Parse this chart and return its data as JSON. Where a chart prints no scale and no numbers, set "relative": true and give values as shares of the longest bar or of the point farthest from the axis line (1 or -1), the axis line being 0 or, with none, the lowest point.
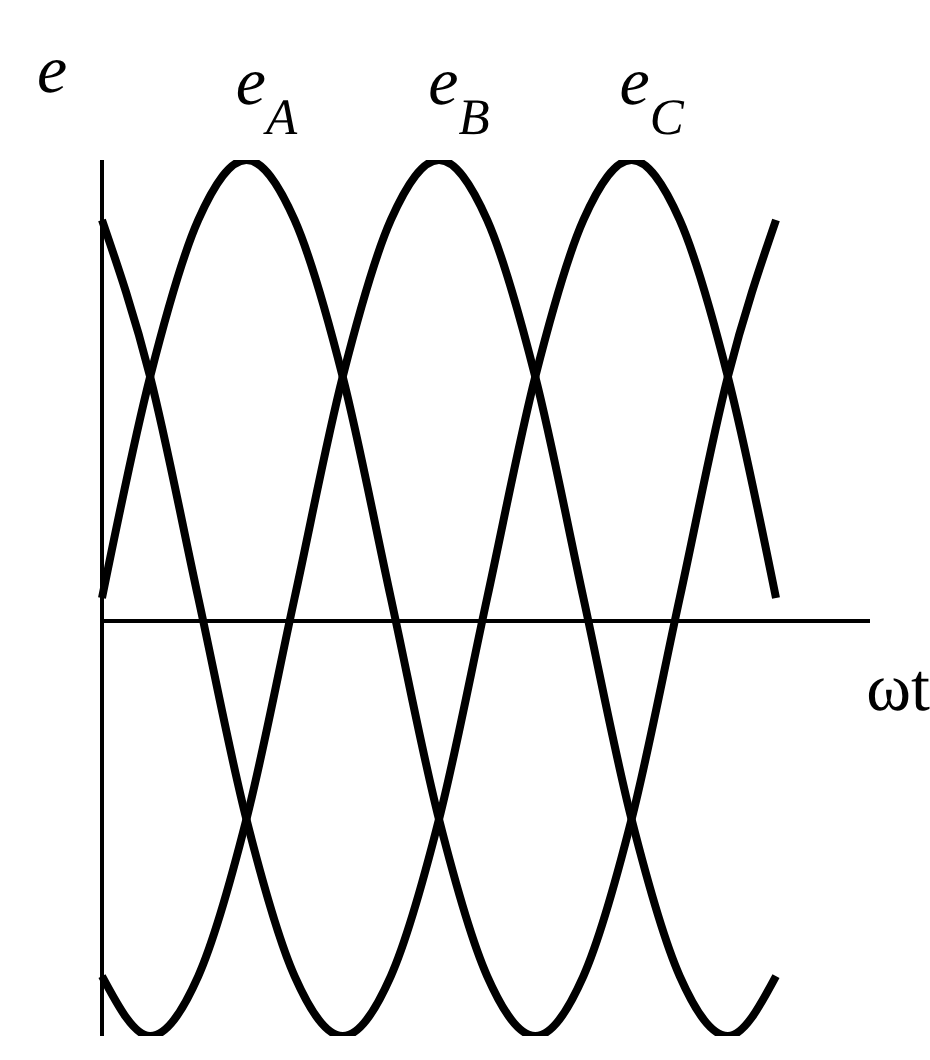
{
  "chart_data": {
    "type": "line",
    "relative": true,
    "ylabel": "e",
    "xlabel": "ωt",
    "legend": false,
    "marker": "none",
    "line_style": "solid",
    "grid": false,
    "categories": [
      null,
      null,
      null,
      null,
      null,
      null,
      null,
      null,
      null,
      null,
      null,
      null,
      null,
      null,
      null
    ],
    "series": [
      {
        "name": "e$_{A}$",
        "color": "#000000",
        "values": [
          0.05,
          0.53,
          0.87,
          1,
          0.87,
          0.53,
          0.05,
          -0.43,
          -0.77,
          -0.9,
          -0.77,
          -0.43,
          0.05,
          0.53,
          0.87
        ]
      },
      {
        "name": "e$_{B}$",
        "color": "#000000",
        "values": [
          -0.77,
          -0.9,
          -0.77,
          -0.43,
          0.05,
          0.53,
          0.87,
          1,
          0.87,
          0.53,
          0.05,
          -0.43,
          -0.77,
          -0.9,
          -0.77
        ]
      },
      {
        "name": "e$_{C}$",
        "color": "#000000",
        "values": [
          0.87,
          0.53,
          0.05,
          -0.43,
          -0.77,
          -0.9,
          -0.77,
          -0.43,
          0.05,
          0.53,
          0.87,
          1,
          0.87,
          0.53,
          0.05
        ]
      }
    ]
  }
}
